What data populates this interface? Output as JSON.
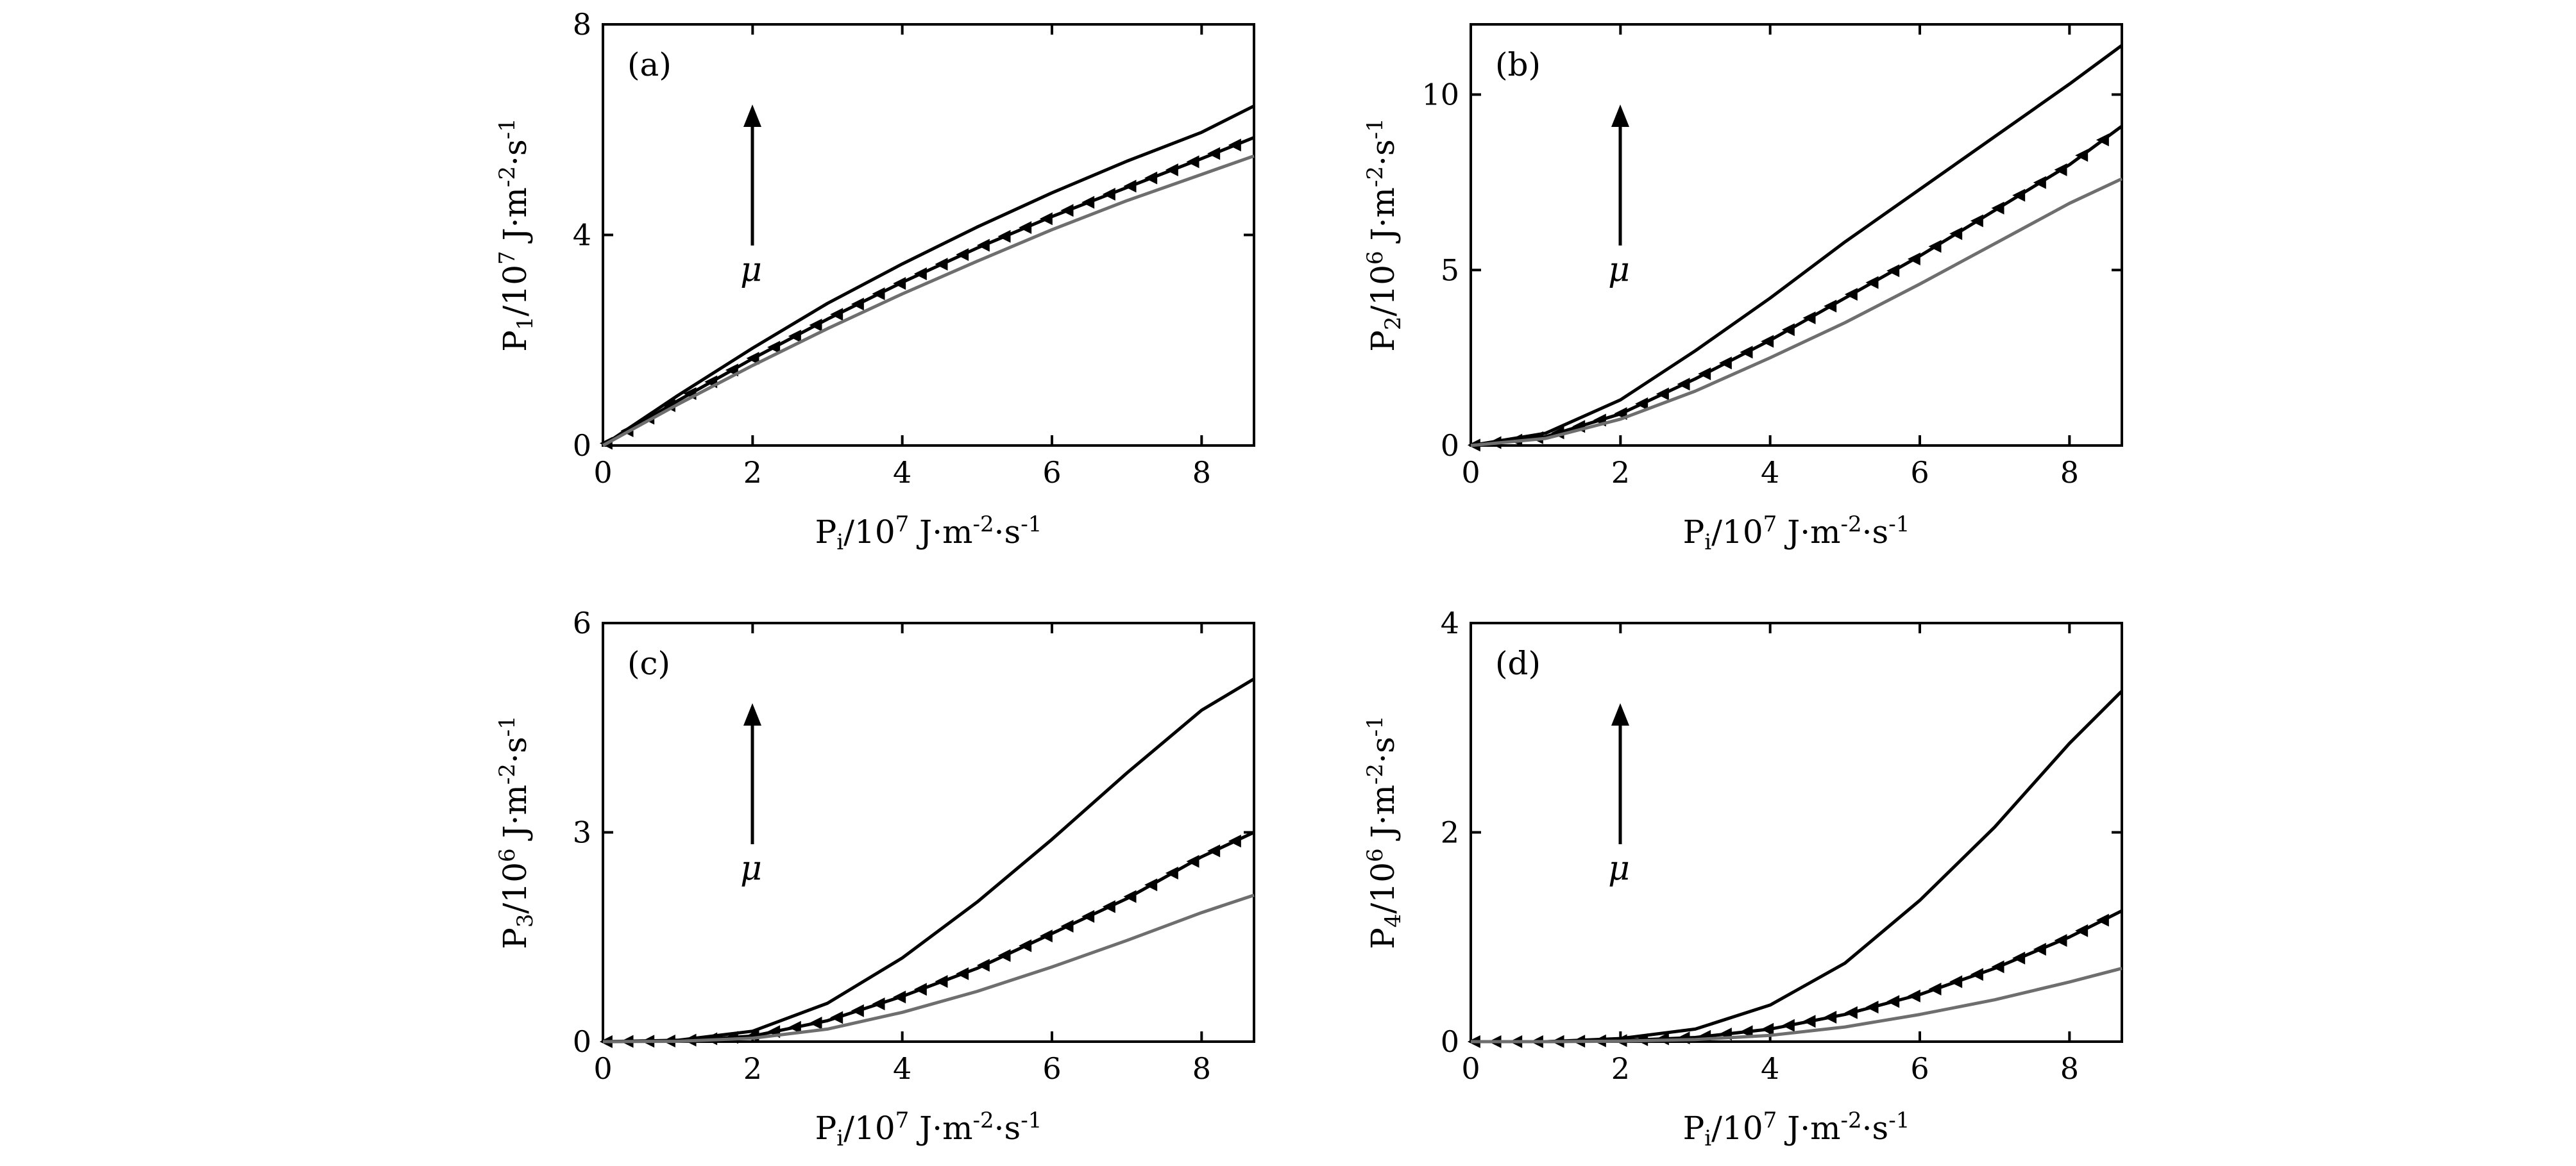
{
  "chart_data": [
    {
      "type": "line",
      "panel_label": "(a)",
      "xlabel": "P_i/10^7 J·m^-2·s^-1",
      "ylabel": "P_1/10^7 J·m^-2·s^-1",
      "xlim": [
        0,
        8.7
      ],
      "ylim": [
        0,
        8
      ],
      "xticks": [
        0,
        2,
        4,
        6,
        8
      ],
      "yticks": [
        0,
        4,
        8
      ],
      "annotation": "μ",
      "series": [
        {
          "style": "black",
          "x": [
            0,
            1,
            2,
            3,
            4,
            5,
            6,
            7,
            8,
            8.7
          ],
          "y": [
            0,
            0.95,
            1.85,
            2.7,
            3.45,
            4.15,
            4.8,
            5.4,
            5.95,
            6.45
          ]
        },
        {
          "style": "black-markers",
          "x": [
            0,
            1,
            2,
            3,
            4,
            5,
            6,
            7,
            8,
            8.7
          ],
          "y": [
            0,
            0.85,
            1.65,
            2.4,
            3.1,
            3.75,
            4.35,
            4.9,
            5.45,
            5.85
          ]
        },
        {
          "style": "gray",
          "x": [
            0,
            1,
            2,
            3,
            4,
            5,
            6,
            7,
            8,
            8.7
          ],
          "y": [
            0,
            0.78,
            1.52,
            2.22,
            2.88,
            3.5,
            4.1,
            4.65,
            5.15,
            5.5
          ]
        }
      ]
    },
    {
      "type": "line",
      "panel_label": "(b)",
      "xlabel": "P_i/10^7 J·m^-2·s^-1",
      "ylabel": "P_2/10^6 J·m^-2·s^-1",
      "xlim": [
        0,
        8.7
      ],
      "ylim": [
        0,
        12
      ],
      "xticks": [
        0,
        2,
        4,
        6,
        8
      ],
      "yticks": [
        0,
        5,
        10
      ],
      "annotation": "μ",
      "series": [
        {
          "style": "black",
          "x": [
            0,
            1,
            2,
            3,
            4,
            5,
            6,
            7,
            8,
            8.7
          ],
          "y": [
            0,
            0.35,
            1.3,
            2.7,
            4.2,
            5.8,
            7.3,
            8.8,
            10.3,
            11.4
          ]
        },
        {
          "style": "black-markers",
          "x": [
            0,
            1,
            2,
            3,
            4,
            5,
            6,
            7,
            8,
            8.7
          ],
          "y": [
            0,
            0.25,
            0.9,
            1.9,
            3.0,
            4.2,
            5.4,
            6.7,
            8.0,
            9.1
          ]
        },
        {
          "style": "gray",
          "x": [
            0,
            1,
            2,
            3,
            4,
            5,
            6,
            7,
            8,
            8.7
          ],
          "y": [
            0,
            0.2,
            0.75,
            1.55,
            2.5,
            3.5,
            4.6,
            5.75,
            6.9,
            7.6
          ]
        }
      ]
    },
    {
      "type": "line",
      "panel_label": "(c)",
      "xlabel": "P_i/10^7 J·m^-2·s^-1",
      "ylabel": "P_3/10^6 J·m^-2·s^-1",
      "xlim": [
        0,
        8.7
      ],
      "ylim": [
        0,
        6
      ],
      "xticks": [
        0,
        2,
        4,
        6,
        8
      ],
      "yticks": [
        0,
        3,
        6
      ],
      "annotation": "μ",
      "series": [
        {
          "style": "black",
          "x": [
            0,
            1,
            2,
            3,
            4,
            5,
            6,
            7,
            8,
            8.7
          ],
          "y": [
            0,
            0.02,
            0.15,
            0.55,
            1.2,
            2.0,
            2.9,
            3.85,
            4.75,
            5.2
          ]
        },
        {
          "style": "black-markers",
          "x": [
            0,
            1,
            2,
            3,
            4,
            5,
            6,
            7,
            8,
            8.7
          ],
          "y": [
            0,
            0.01,
            0.08,
            0.3,
            0.65,
            1.05,
            1.55,
            2.05,
            2.65,
            3.0
          ]
        },
        {
          "style": "gray",
          "x": [
            0,
            1,
            2,
            3,
            4,
            5,
            6,
            7,
            8,
            8.7
          ],
          "y": [
            0,
            0.005,
            0.05,
            0.18,
            0.42,
            0.72,
            1.07,
            1.45,
            1.85,
            2.1
          ]
        }
      ]
    },
    {
      "type": "line",
      "panel_label": "(d)",
      "xlabel": "P_i/10^7 J·m^-2·s^-1",
      "ylabel": "P_4/10^6 J·m^-2·s^-1",
      "xlim": [
        0,
        8.7
      ],
      "ylim": [
        0,
        4
      ],
      "xticks": [
        0,
        2,
        4,
        6,
        8
      ],
      "yticks": [
        0,
        2,
        4
      ],
      "annotation": "μ",
      "series": [
        {
          "style": "black",
          "x": [
            0,
            1,
            2,
            3,
            4,
            5,
            6,
            7,
            8,
            8.7
          ],
          "y": [
            0,
            0.0,
            0.03,
            0.12,
            0.35,
            0.75,
            1.35,
            2.05,
            2.85,
            3.35
          ]
        },
        {
          "style": "black-markers",
          "x": [
            0,
            1,
            2,
            3,
            4,
            5,
            6,
            7,
            8,
            8.7
          ],
          "y": [
            0,
            0.0,
            0.01,
            0.04,
            0.12,
            0.26,
            0.45,
            0.7,
            1.0,
            1.25
          ]
        },
        {
          "style": "gray",
          "x": [
            0,
            1,
            2,
            3,
            4,
            5,
            6,
            7,
            8,
            8.7
          ],
          "y": [
            0,
            0.0,
            0.005,
            0.02,
            0.06,
            0.14,
            0.26,
            0.4,
            0.57,
            0.7
          ]
        }
      ]
    }
  ],
  "colors": {
    "black": "#000000",
    "gray": "#6e6e6e",
    "markers": "#000000"
  }
}
